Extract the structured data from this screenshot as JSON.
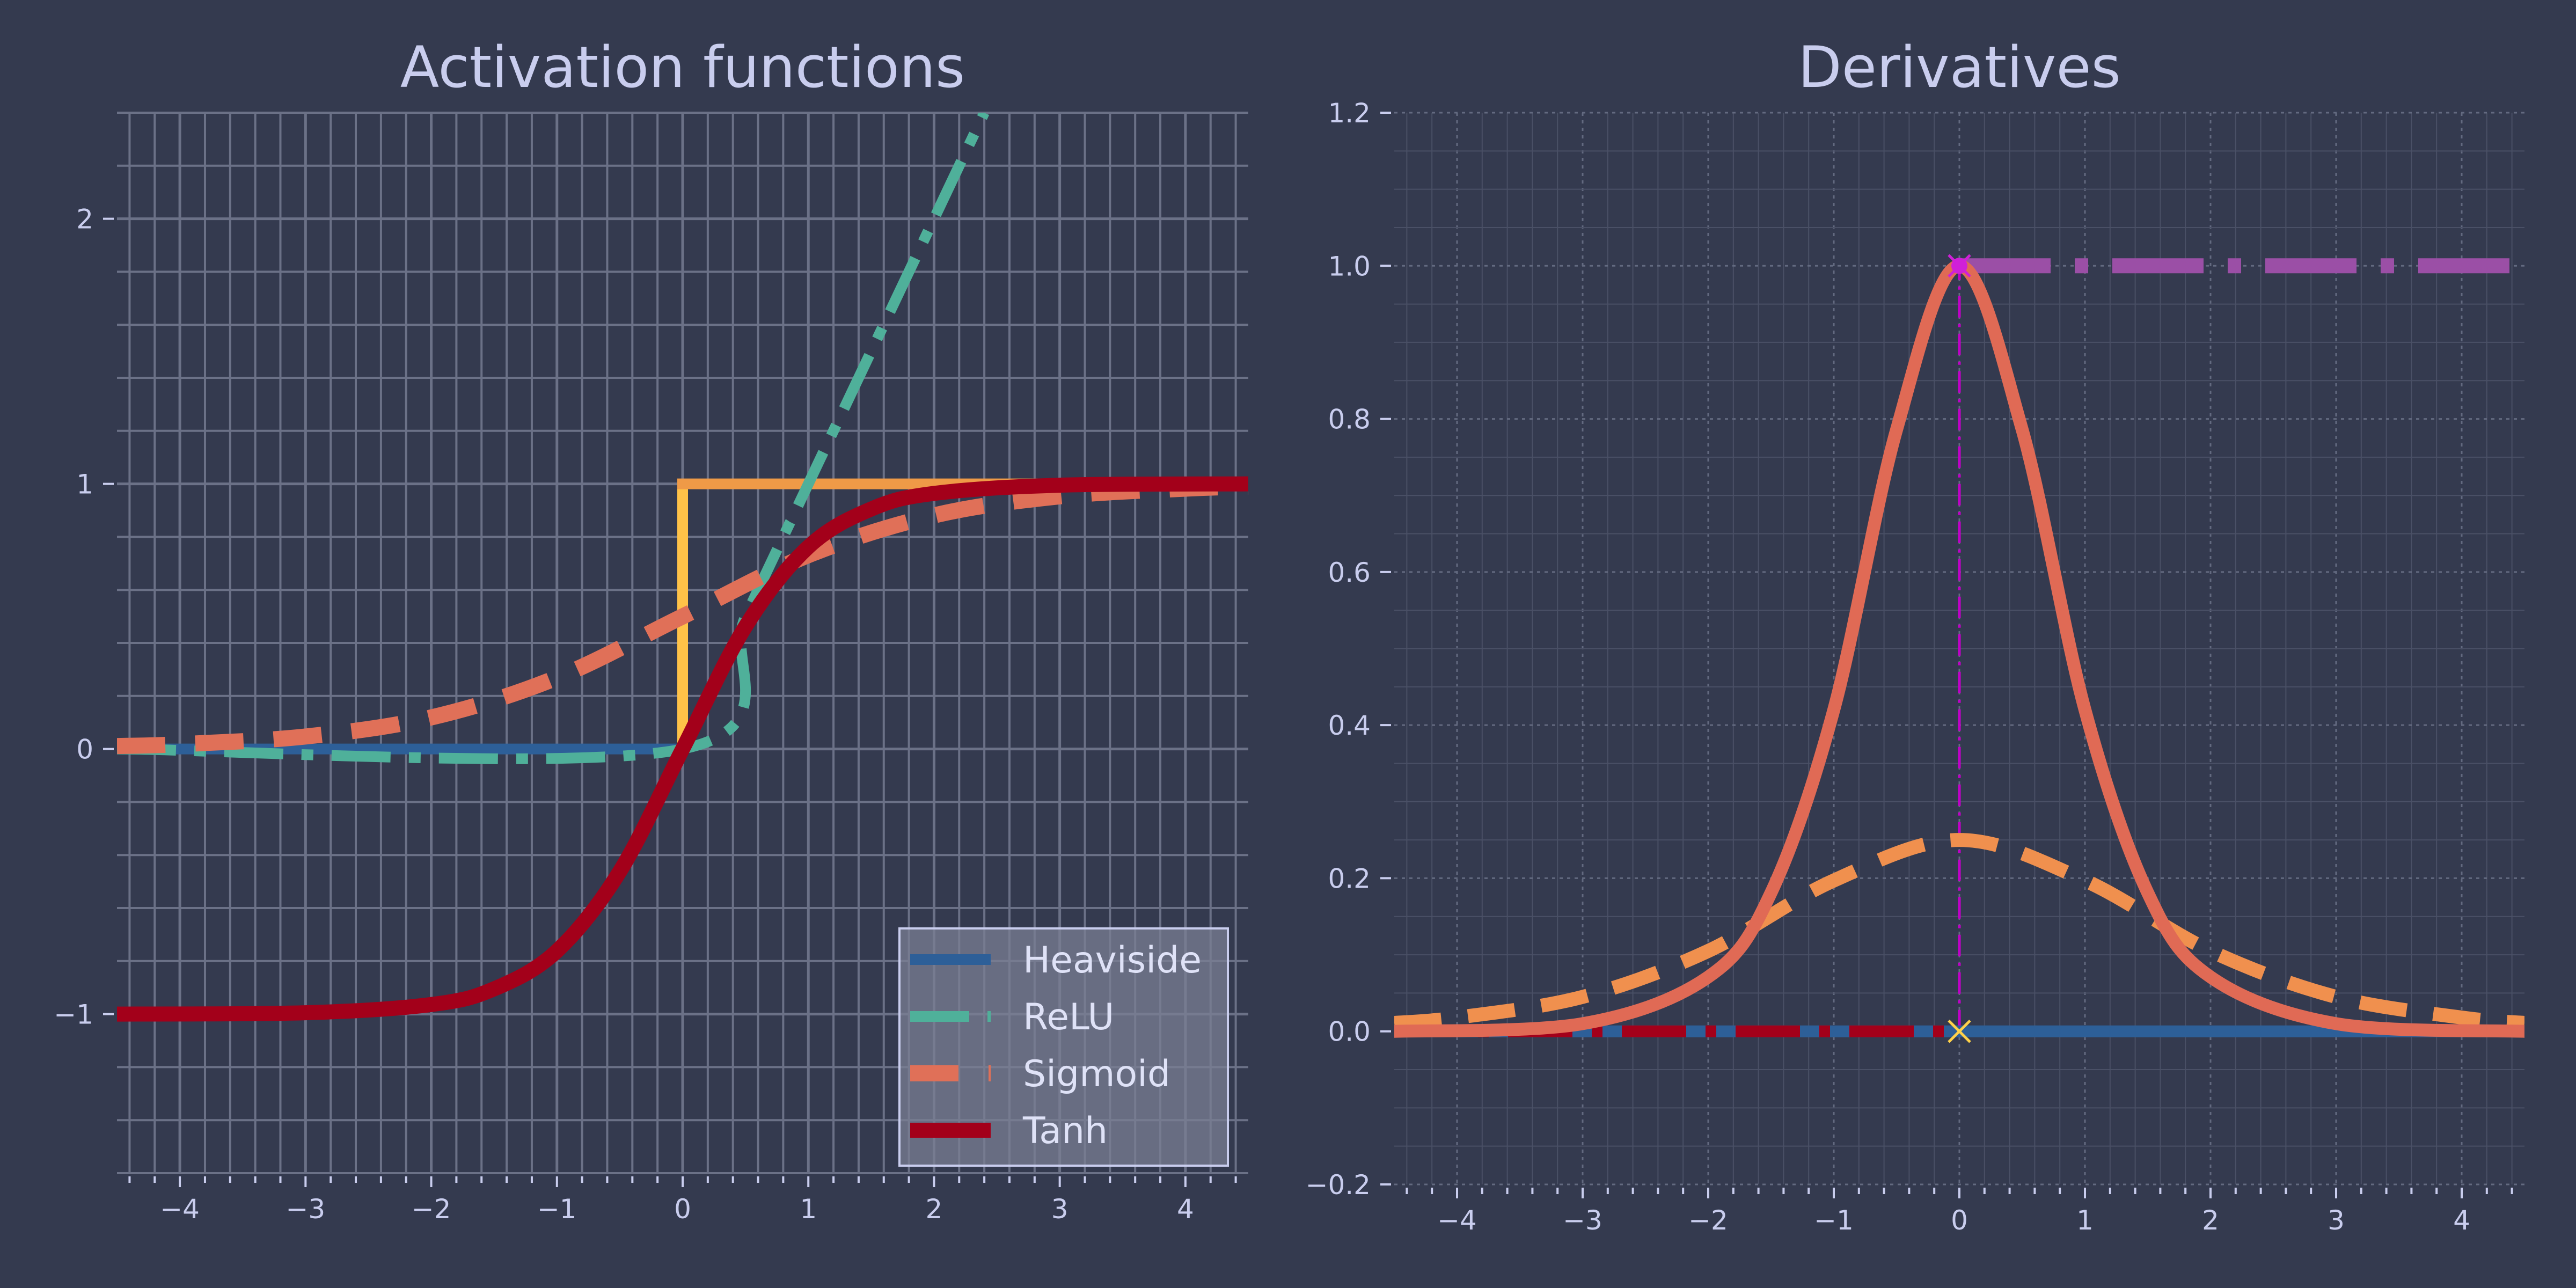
{
  "chart_data": [
    {
      "type": "line",
      "title": "Activation functions",
      "xlabel": "",
      "ylabel": "",
      "xlim": [
        -4.5,
        4.5
      ],
      "ylim": [
        -1.6,
        2.4
      ],
      "xticks": [
        -4,
        -3,
        -2,
        -1,
        0,
        1,
        2,
        3,
        4
      ],
      "xtick_labels": [
        "−4",
        "−3",
        "−2",
        "−1",
        "0",
        "1",
        "2",
        "3",
        "4"
      ],
      "yticks": [
        -1,
        0,
        1,
        2
      ],
      "ytick_labels": [
        "−1",
        "0",
        "1",
        "2"
      ],
      "grid": "major and minor",
      "legend_position": "lower-right",
      "series": [
        {
          "name": "Heaviside",
          "color": "#2d5f98",
          "points": [
            [
              -4.5,
              0
            ],
            [
              0,
              0
            ],
            [
              0,
              1
            ],
            [
              4.5,
              1
            ]
          ]
        },
        {
          "name": "ReLU",
          "color": "#4fb09a",
          "points": [
            [
              -4.5,
              0
            ],
            [
              0,
              0
            ],
            [
              0.5,
              0.5
            ],
            [
              1,
              1
            ],
            [
              1.5,
              1.5
            ],
            [
              2,
              2
            ],
            [
              2.4,
              2.4
            ]
          ]
        },
        {
          "name": "Sigmoid",
          "color": "#e07058",
          "points": [
            [
              -4.5,
              0.011
            ],
            [
              -4,
              0.018
            ],
            [
              -3,
              0.047
            ],
            [
              -2,
              0.119
            ],
            [
              -1,
              0.269
            ],
            [
              0,
              0.5
            ],
            [
              1,
              0.731
            ],
            [
              2,
              0.881
            ],
            [
              3,
              0.953
            ],
            [
              4,
              0.982
            ],
            [
              4.5,
              0.989
            ]
          ]
        },
        {
          "name": "Tanh",
          "color": "#a3001a",
          "points": [
            [
              -4.5,
              -1
            ],
            [
              -3,
              -0.995
            ],
            [
              -2,
              -0.964
            ],
            [
              -1.5,
              -0.905
            ],
            [
              -1,
              -0.762
            ],
            [
              -0.5,
              -0.462
            ],
            [
              0,
              0
            ],
            [
              0.5,
              0.462
            ],
            [
              1,
              0.762
            ],
            [
              1.5,
              0.905
            ],
            [
              2,
              0.964
            ],
            [
              3,
              0.995
            ],
            [
              4.5,
              1
            ]
          ]
        }
      ]
    },
    {
      "type": "line",
      "title": "Derivatives",
      "xlabel": "",
      "ylabel": "",
      "xlim": [
        -4.5,
        4.5
      ],
      "ylim": [
        -0.2,
        1.2
      ],
      "xticks": [
        -4,
        -3,
        -2,
        -1,
        0,
        1,
        2,
        3,
        4
      ],
      "xtick_labels": [
        "−4",
        "−3",
        "−2",
        "−1",
        "0",
        "1",
        "2",
        "3",
        "4"
      ],
      "yticks": [
        -0.2,
        0.0,
        0.2,
        0.4,
        0.6,
        0.8,
        1.0,
        1.2
      ],
      "ytick_labels": [
        "−0.2",
        "0.0",
        "0.2",
        "0.4",
        "0.6",
        "0.8",
        "1.0",
        "1.2"
      ],
      "grid": "major and minor (dotted)",
      "series": [
        {
          "color": "#2d5f98",
          "points": [
            [
              -4.5,
              0
            ],
            [
              4.5,
              0
            ]
          ]
        },
        {
          "color": "#a3001a",
          "points": [
            [
              -4.5,
              0
            ],
            [
              0,
              0
            ]
          ]
        },
        {
          "color": "#9b4fa6",
          "points": [
            [
              0,
              1
            ],
            [
              4.5,
              1
            ]
          ]
        },
        {
          "color": "#f0904e",
          "points": [
            [
              -4.5,
              0.011
            ],
            [
              -4,
              0.018
            ],
            [
              -3,
              0.045
            ],
            [
              -2,
              0.105
            ],
            [
              -1,
              0.197
            ],
            [
              0,
              0.25
            ],
            [
              1,
              0.197
            ],
            [
              2,
              0.105
            ],
            [
              3,
              0.045
            ],
            [
              4,
              0.018
            ],
            [
              4.5,
              0.011
            ]
          ]
        },
        {
          "color": "#e06a55",
          "points": [
            [
              -4.5,
              0
            ],
            [
              -3,
              0.01
            ],
            [
              -2,
              0.071
            ],
            [
              -1.5,
              0.181
            ],
            [
              -1,
              0.42
            ],
            [
              -0.5,
              0.786
            ],
            [
              0,
              1
            ],
            [
              0.5,
              0.786
            ],
            [
              1,
              0.42
            ],
            [
              1.5,
              0.181
            ],
            [
              2,
              0.071
            ],
            [
              3,
              0.01
            ],
            [
              4.5,
              0
            ]
          ]
        }
      ],
      "annotations": [
        {
          "type": "vertical-line",
          "x": 0,
          "from": 0,
          "to": 1,
          "color": "#c000c8"
        },
        {
          "type": "marker",
          "x": 0,
          "y": 1,
          "color": "#d020d8"
        },
        {
          "type": "marker",
          "x": 0,
          "y": 0,
          "color": "#ffd24a"
        }
      ]
    }
  ]
}
